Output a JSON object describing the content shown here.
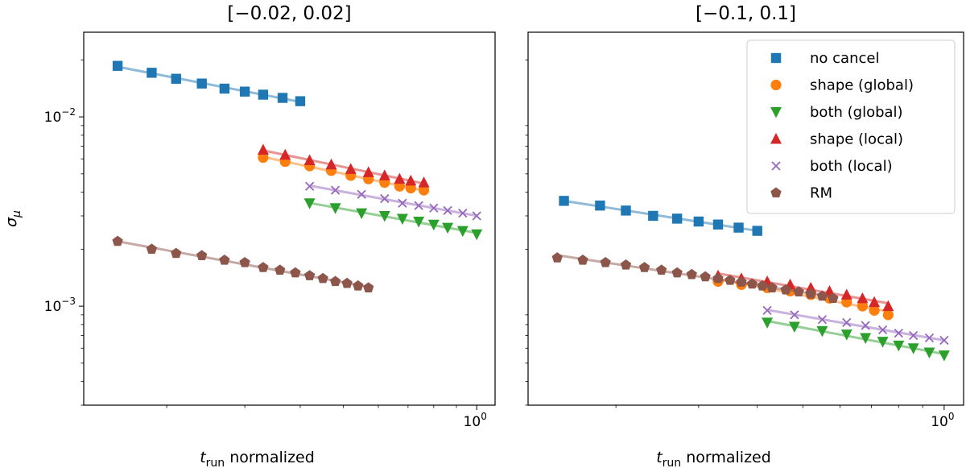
{
  "chart_data": [
    {
      "type": "scatter",
      "title": "[−0.02, 0.02]",
      "xlabel_var": "t",
      "xlabel_sub": "run",
      "xlabel_rest": " normalized",
      "ylabel_var": "σ",
      "ylabel_sub": "μ",
      "xscale": "log",
      "yscale": "log",
      "xlim": [
        0.13,
        1.1
      ],
      "ylim": [
        0.0003,
        0.028
      ],
      "xtick_major": [
        {
          "value": 1,
          "base": "10",
          "exp": "0"
        }
      ],
      "ytick_major": [
        {
          "value": 0.01,
          "base": "10",
          "exp": "−2"
        },
        {
          "value": 0.001,
          "base": "10",
          "exp": "−3"
        }
      ],
      "series": [
        {
          "name": "no cancel",
          "color": "#1f77b4",
          "marker": "square",
          "x": [
            0.155,
            0.185,
            0.21,
            0.24,
            0.27,
            0.3,
            0.33,
            0.365,
            0.4
          ],
          "y": [
            0.0186,
            0.0171,
            0.0159,
            0.015,
            0.0141,
            0.0136,
            0.0131,
            0.0126,
            0.0121
          ]
        },
        {
          "name": "shape (global)",
          "color": "#ff7f0e",
          "marker": "circle",
          "x": [
            0.33,
            0.37,
            0.42,
            0.47,
            0.52,
            0.57,
            0.62,
            0.67,
            0.71,
            0.76
          ],
          "y": [
            0.0061,
            0.0058,
            0.0055,
            0.0052,
            0.0049,
            0.0047,
            0.0045,
            0.0043,
            0.0042,
            0.0041
          ]
        },
        {
          "name": "both (global)",
          "color": "#2ca02c",
          "marker": "triangle-down",
          "x": [
            0.42,
            0.48,
            0.55,
            0.62,
            0.68,
            0.74,
            0.8,
            0.86,
            0.93,
            1.0
          ],
          "y": [
            0.0035,
            0.0033,
            0.0031,
            0.003,
            0.0029,
            0.0028,
            0.0027,
            0.0026,
            0.0025,
            0.0024
          ]
        },
        {
          "name": "shape (local)",
          "color": "#d62728",
          "marker": "triangle-up",
          "x": [
            0.33,
            0.37,
            0.42,
            0.47,
            0.52,
            0.57,
            0.62,
            0.67,
            0.71,
            0.76
          ],
          "y": [
            0.0067,
            0.0063,
            0.0059,
            0.0056,
            0.0053,
            0.0051,
            0.0049,
            0.0047,
            0.0046,
            0.0045
          ]
        },
        {
          "name": "both (local)",
          "color": "#9467bd",
          "marker": "x",
          "x": [
            0.42,
            0.48,
            0.55,
            0.62,
            0.68,
            0.74,
            0.8,
            0.86,
            0.93,
            1.0
          ],
          "y": [
            0.0043,
            0.0041,
            0.0039,
            0.0037,
            0.0035,
            0.0034,
            0.0033,
            0.0032,
            0.0031,
            0.003
          ]
        },
        {
          "name": "RM",
          "color": "#8c564b",
          "marker": "pentagon",
          "x": [
            0.155,
            0.185,
            0.21,
            0.24,
            0.27,
            0.3,
            0.33,
            0.36,
            0.39,
            0.42,
            0.45,
            0.48,
            0.51,
            0.54,
            0.57
          ],
          "y": [
            0.0022,
            0.002,
            0.0019,
            0.00185,
            0.00175,
            0.0017,
            0.0016,
            0.00155,
            0.0015,
            0.00145,
            0.0014,
            0.00135,
            0.00132,
            0.00128,
            0.00125
          ]
        }
      ]
    },
    {
      "type": "scatter",
      "title": "[−0.1, 0.1]",
      "xlabel_var": "t",
      "xlabel_sub": "run",
      "xlabel_rest": " normalized",
      "xscale": "log",
      "yscale": "log",
      "xlim": [
        0.13,
        1.1
      ],
      "ylim": [
        0.0003,
        0.028
      ],
      "xtick_major": [
        {
          "value": 1,
          "base": "10",
          "exp": "0"
        }
      ],
      "ytick_major": [],
      "legend_loc": "upper right",
      "series": [
        {
          "name": "no cancel",
          "color": "#1f77b4",
          "marker": "square",
          "x": [
            0.155,
            0.185,
            0.21,
            0.24,
            0.27,
            0.3,
            0.33,
            0.365,
            0.4
          ],
          "y": [
            0.0036,
            0.0034,
            0.0032,
            0.003,
            0.0029,
            0.0028,
            0.0027,
            0.0026,
            0.0025
          ]
        },
        {
          "name": "shape (global)",
          "color": "#ff7f0e",
          "marker": "circle",
          "x": [
            0.33,
            0.37,
            0.42,
            0.47,
            0.52,
            0.57,
            0.62,
            0.67,
            0.71,
            0.76
          ],
          "y": [
            0.00135,
            0.0013,
            0.00125,
            0.0012,
            0.00115,
            0.0011,
            0.00105,
            0.001,
            0.00095,
            0.0009
          ]
        },
        {
          "name": "both (global)",
          "color": "#2ca02c",
          "marker": "triangle-down",
          "x": [
            0.42,
            0.48,
            0.55,
            0.62,
            0.68,
            0.74,
            0.8,
            0.86,
            0.93,
            1.0
          ],
          "y": [
            0.00082,
            0.00078,
            0.00074,
            0.00071,
            0.00068,
            0.00065,
            0.00062,
            0.0006,
            0.00057,
            0.00055
          ]
        },
        {
          "name": "shape (local)",
          "color": "#d62728",
          "marker": "triangle-up",
          "x": [
            0.33,
            0.37,
            0.42,
            0.47,
            0.52,
            0.57,
            0.62,
            0.67,
            0.71,
            0.76
          ],
          "y": [
            0.00145,
            0.0014,
            0.00135,
            0.0013,
            0.00125,
            0.0012,
            0.00115,
            0.0011,
            0.00105,
            0.001
          ]
        },
        {
          "name": "both (local)",
          "color": "#9467bd",
          "marker": "x",
          "x": [
            0.42,
            0.48,
            0.55,
            0.62,
            0.68,
            0.74,
            0.8,
            0.86,
            0.93,
            1.0
          ],
          "y": [
            0.00095,
            0.0009,
            0.00085,
            0.00082,
            0.00079,
            0.00075,
            0.00072,
            0.0007,
            0.00068,
            0.00066
          ]
        },
        {
          "name": "RM",
          "color": "#8c564b",
          "marker": "pentagon",
          "x": [
            0.15,
            0.17,
            0.19,
            0.21,
            0.23,
            0.25,
            0.27,
            0.29,
            0.31,
            0.33,
            0.35,
            0.37,
            0.39,
            0.41,
            0.43,
            0.46,
            0.49,
            0.52,
            0.55,
            0.58
          ],
          "y": [
            0.0018,
            0.00175,
            0.0017,
            0.00165,
            0.0016,
            0.00155,
            0.0015,
            0.00147,
            0.00143,
            0.0014,
            0.00137,
            0.00134,
            0.00131,
            0.00128,
            0.00125,
            0.00122,
            0.00119,
            0.00116,
            0.00113,
            0.0011
          ]
        }
      ]
    }
  ]
}
